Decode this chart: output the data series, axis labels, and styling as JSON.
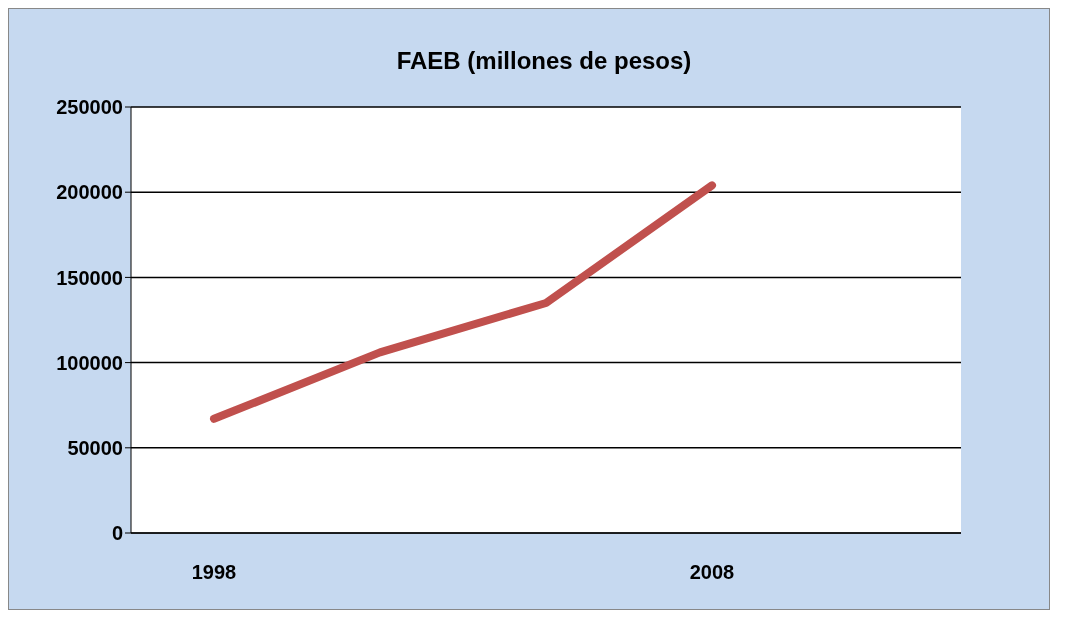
{
  "chart_data": {
    "type": "line",
    "title": "FAEB (millones de pesos)",
    "categories": [
      "1998",
      null,
      null,
      "2008",
      null
    ],
    "series": [
      {
        "color": "#c0504d",
        "values": [
          67000,
          106000,
          135000,
          204000,
          null
        ]
      }
    ],
    "ylim": [
      0,
      250000
    ],
    "yticks": [
      0,
      50000,
      100000,
      150000,
      200000,
      250000
    ],
    "grid": "y",
    "legend": false,
    "marker": "none",
    "line_style": "solid"
  }
}
